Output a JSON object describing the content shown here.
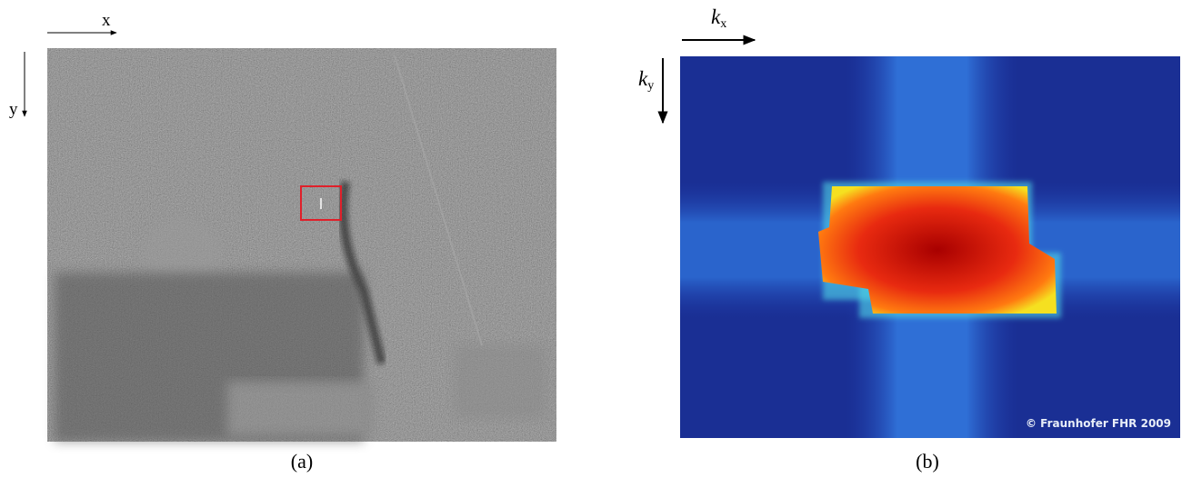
{
  "panel_a": {
    "x_axis_label": "x",
    "y_axis_label": "y",
    "caption": "(a)"
  },
  "panel_b": {
    "x_axis_label": {
      "symbol": "k",
      "subscript": "x"
    },
    "y_axis_label": {
      "symbol": "k",
      "subscript": "y"
    },
    "caption": "(b)",
    "copyright": "© Fraunhofer FHR 2009"
  }
}
